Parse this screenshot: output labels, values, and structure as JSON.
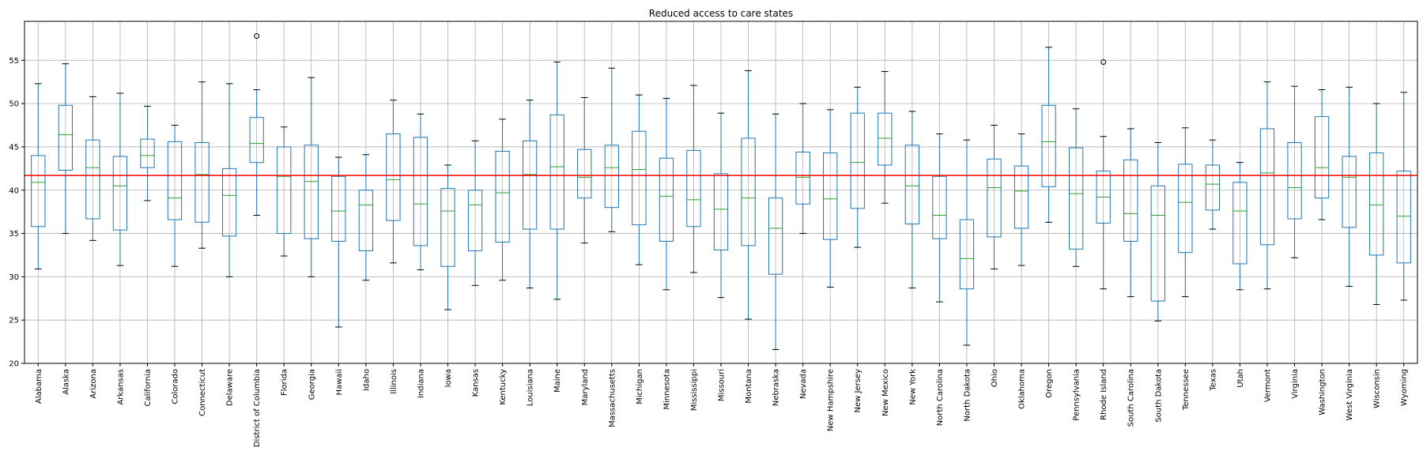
{
  "chart_data": {
    "type": "box",
    "title": "Reduced access to care states",
    "xlabel": "",
    "ylabel": "",
    "ylim": [
      20,
      59.5
    ],
    "yticks": [
      20,
      25,
      30,
      35,
      40,
      45,
      50,
      55
    ],
    "grid": true,
    "reference_line": {
      "value": 41.7,
      "color": "#ff0000"
    },
    "colors": {
      "box": "#1f77b4",
      "median": "#2ca02c",
      "whisker": "#1f77b4",
      "cap": "#000000",
      "grid": "#b0b0b0"
    },
    "categories": [
      "Alabama",
      "Alaska",
      "Arizona",
      "Arkansas",
      "California",
      "Colorado",
      "Connecticut",
      "Delaware",
      "District of Columbia",
      "Florida",
      "Georgia",
      "Hawaii",
      "Idaho",
      "Illinois",
      "Indiana",
      "Iowa",
      "Kansas",
      "Kentucky",
      "Louisiana",
      "Maine",
      "Maryland",
      "Massachusetts",
      "Michigan",
      "Minnesota",
      "Mississippi",
      "Missouri",
      "Montana",
      "Nebraska",
      "Nevada",
      "New Hampshire",
      "New Jersey",
      "New Mexico",
      "New York",
      "North Carolina",
      "North Dakota",
      "Ohio",
      "Oklahoma",
      "Oregon",
      "Pennsylvania",
      "Rhode Island",
      "South Carolina",
      "South Dakota",
      "Tennessee",
      "Texas",
      "Utah",
      "Vermont",
      "Virginia",
      "Washington",
      "West Virginia",
      "Wisconsin",
      "Wyoming"
    ],
    "boxes": [
      {
        "min": 30.9,
        "q1": 35.8,
        "median": 40.9,
        "q3": 44.0,
        "max": 52.3,
        "outliers": []
      },
      {
        "min": 35.0,
        "q1": 42.3,
        "median": 46.4,
        "q3": 49.8,
        "max": 54.6,
        "outliers": []
      },
      {
        "min": 34.2,
        "q1": 36.7,
        "median": 42.6,
        "q3": 45.8,
        "max": 50.8,
        "outliers": []
      },
      {
        "min": 31.3,
        "q1": 35.4,
        "median": 40.5,
        "q3": 43.9,
        "max": 51.2,
        "outliers": []
      },
      {
        "min": 38.8,
        "q1": 42.6,
        "median": 44.0,
        "q3": 45.9,
        "max": 49.7,
        "outliers": []
      },
      {
        "min": 31.2,
        "q1": 36.6,
        "median": 39.1,
        "q3": 45.6,
        "max": 47.5,
        "outliers": []
      },
      {
        "min": 33.3,
        "q1": 36.3,
        "median": 41.8,
        "q3": 45.5,
        "max": 52.5,
        "outliers": []
      },
      {
        "min": 30.0,
        "q1": 34.7,
        "median": 39.4,
        "q3": 42.5,
        "max": 52.3,
        "outliers": []
      },
      {
        "min": 37.1,
        "q1": 43.2,
        "median": 45.4,
        "q3": 48.4,
        "max": 51.6,
        "outliers": [
          57.8
        ]
      },
      {
        "min": 32.4,
        "q1": 35.0,
        "median": 41.6,
        "q3": 45.0,
        "max": 47.3,
        "outliers": []
      },
      {
        "min": 30.0,
        "q1": 34.4,
        "median": 41.0,
        "q3": 45.2,
        "max": 53.0,
        "outliers": []
      },
      {
        "min": 24.2,
        "q1": 34.1,
        "median": 37.6,
        "q3": 41.6,
        "max": 43.8,
        "outliers": []
      },
      {
        "min": 29.6,
        "q1": 33.0,
        "median": 38.3,
        "q3": 40.0,
        "max": 44.1,
        "outliers": []
      },
      {
        "min": 31.6,
        "q1": 36.5,
        "median": 41.2,
        "q3": 46.5,
        "max": 50.4,
        "outliers": []
      },
      {
        "min": 30.8,
        "q1": 33.6,
        "median": 38.4,
        "q3": 46.1,
        "max": 48.8,
        "outliers": []
      },
      {
        "min": 26.2,
        "q1": 31.2,
        "median": 37.6,
        "q3": 40.2,
        "max": 42.9,
        "outliers": []
      },
      {
        "min": 29.0,
        "q1": 33.0,
        "median": 38.3,
        "q3": 40.0,
        "max": 45.7,
        "outliers": []
      },
      {
        "min": 29.6,
        "q1": 34.0,
        "median": 39.7,
        "q3": 44.5,
        "max": 48.2,
        "outliers": []
      },
      {
        "min": 28.7,
        "q1": 35.5,
        "median": 41.8,
        "q3": 45.7,
        "max": 50.4,
        "outliers": []
      },
      {
        "min": 27.4,
        "q1": 35.5,
        "median": 42.7,
        "q3": 48.7,
        "max": 54.8,
        "outliers": []
      },
      {
        "min": 33.9,
        "q1": 39.1,
        "median": 41.5,
        "q3": 44.7,
        "max": 50.7,
        "outliers": []
      },
      {
        "min": 35.2,
        "q1": 38.0,
        "median": 42.6,
        "q3": 45.2,
        "max": 54.1,
        "outliers": []
      },
      {
        "min": 31.4,
        "q1": 36.0,
        "median": 42.4,
        "q3": 46.8,
        "max": 51.0,
        "outliers": []
      },
      {
        "min": 28.5,
        "q1": 34.1,
        "median": 39.3,
        "q3": 43.7,
        "max": 50.6,
        "outliers": []
      },
      {
        "min": 30.5,
        "q1": 35.8,
        "median": 38.9,
        "q3": 44.6,
        "max": 52.1,
        "outliers": []
      },
      {
        "min": 27.6,
        "q1": 33.1,
        "median": 37.8,
        "q3": 41.9,
        "max": 48.9,
        "outliers": []
      },
      {
        "min": 25.1,
        "q1": 33.6,
        "median": 39.1,
        "q3": 46.0,
        "max": 53.8,
        "outliers": []
      },
      {
        "min": 21.6,
        "q1": 30.3,
        "median": 35.6,
        "q3": 39.1,
        "max": 48.8,
        "outliers": []
      },
      {
        "min": 35.0,
        "q1": 38.4,
        "median": 41.5,
        "q3": 44.4,
        "max": 50.0,
        "outliers": []
      },
      {
        "min": 28.8,
        "q1": 34.3,
        "median": 39.0,
        "q3": 44.3,
        "max": 49.3,
        "outliers": []
      },
      {
        "min": 33.4,
        "q1": 37.9,
        "median": 43.2,
        "q3": 48.9,
        "max": 51.9,
        "outliers": []
      },
      {
        "min": 38.5,
        "q1": 42.9,
        "median": 46.0,
        "q3": 48.9,
        "max": 53.7,
        "outliers": []
      },
      {
        "min": 28.7,
        "q1": 36.1,
        "median": 40.5,
        "q3": 45.2,
        "max": 49.1,
        "outliers": []
      },
      {
        "min": 27.1,
        "q1": 34.4,
        "median": 37.1,
        "q3": 41.6,
        "max": 46.5,
        "outliers": []
      },
      {
        "min": 22.1,
        "q1": 28.6,
        "median": 32.1,
        "q3": 36.6,
        "max": 45.8,
        "outliers": []
      },
      {
        "min": 30.9,
        "q1": 34.6,
        "median": 40.3,
        "q3": 43.6,
        "max": 47.5,
        "outliers": []
      },
      {
        "min": 31.3,
        "q1": 35.6,
        "median": 39.9,
        "q3": 42.8,
        "max": 46.5,
        "outliers": []
      },
      {
        "min": 36.3,
        "q1": 40.4,
        "median": 45.6,
        "q3": 49.8,
        "max": 56.5,
        "outliers": []
      },
      {
        "min": 31.2,
        "q1": 33.2,
        "median": 39.6,
        "q3": 44.9,
        "max": 49.4,
        "outliers": []
      },
      {
        "min": 28.6,
        "q1": 36.2,
        "median": 39.2,
        "q3": 42.2,
        "max": 46.2,
        "outliers": [
          54.8
        ]
      },
      {
        "min": 27.7,
        "q1": 34.1,
        "median": 37.3,
        "q3": 43.5,
        "max": 47.1,
        "outliers": []
      },
      {
        "min": 24.9,
        "q1": 27.2,
        "median": 37.1,
        "q3": 40.5,
        "max": 45.5,
        "outliers": []
      },
      {
        "min": 27.7,
        "q1": 32.8,
        "median": 38.6,
        "q3": 43.0,
        "max": 47.2,
        "outliers": []
      },
      {
        "min": 35.5,
        "q1": 37.7,
        "median": 40.7,
        "q3": 42.9,
        "max": 45.8,
        "outliers": []
      },
      {
        "min": 28.5,
        "q1": 31.5,
        "median": 37.6,
        "q3": 40.9,
        "max": 43.2,
        "outliers": []
      },
      {
        "min": 28.6,
        "q1": 33.7,
        "median": 42.0,
        "q3": 47.1,
        "max": 52.5,
        "outliers": []
      },
      {
        "min": 32.2,
        "q1": 36.7,
        "median": 40.3,
        "q3": 45.5,
        "max": 52.0,
        "outliers": []
      },
      {
        "min": 36.6,
        "q1": 39.1,
        "median": 42.6,
        "q3": 48.5,
        "max": 51.6,
        "outliers": []
      },
      {
        "min": 28.9,
        "q1": 35.7,
        "median": 41.5,
        "q3": 43.9,
        "max": 51.9,
        "outliers": []
      },
      {
        "min": 26.8,
        "q1": 32.5,
        "median": 38.3,
        "q3": 44.3,
        "max": 50.0,
        "outliers": []
      },
      {
        "min": 27.3,
        "q1": 31.6,
        "median": 37.0,
        "q3": 42.2,
        "max": 51.3,
        "outliers": []
      }
    ]
  }
}
